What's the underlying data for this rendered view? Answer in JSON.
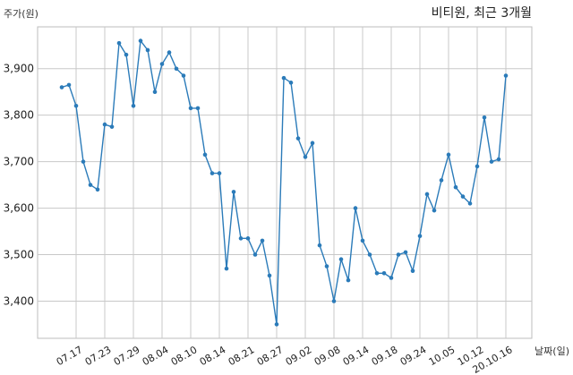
{
  "chart_data": {
    "type": "line",
    "title": "비티원, 최근 3개월",
    "ylabel": "주가(원)",
    "xlabel": "날짜(일)",
    "ylim": [
      3320,
      3990
    ],
    "yticks": [
      3400,
      3500,
      3600,
      3700,
      3800,
      3900
    ],
    "ytick_labels": [
      "3,400",
      "3,500",
      "3,600",
      "3,700",
      "3,800",
      "3,900"
    ],
    "xtick_labels": [
      {
        "label": "07.17",
        "index": 2
      },
      {
        "label": "07.23",
        "index": 6
      },
      {
        "label": "07.29",
        "index": 10
      },
      {
        "label": "08.04",
        "index": 14
      },
      {
        "label": "08.10",
        "index": 18
      },
      {
        "label": "08.14",
        "index": 22
      },
      {
        "label": "08.21",
        "index": 26
      },
      {
        "label": "08.27",
        "index": 30
      },
      {
        "label": "09.02",
        "index": 34
      },
      {
        "label": "09.08",
        "index": 38
      },
      {
        "label": "09.14",
        "index": 42
      },
      {
        "label": "09.18",
        "index": 46
      },
      {
        "label": "09.24",
        "index": 50
      },
      {
        "label": "10.05",
        "index": 54
      },
      {
        "label": "10.12",
        "index": 58
      },
      {
        "label": "20.10.16",
        "index": 62
      }
    ],
    "grid": true,
    "series": [
      {
        "color": "#2b7bb9",
        "values": [
          3860,
          3865,
          3820,
          3700,
          3650,
          3640,
          3780,
          3775,
          3955,
          3930,
          3820,
          3960,
          3940,
          3850,
          3910,
          3935,
          3900,
          3885,
          3815,
          3815,
          3715,
          3675,
          3675,
          3470,
          3635,
          3535,
          3535,
          3500,
          3530,
          3455,
          3350,
          3880,
          3870,
          3750,
          3710,
          3740,
          3520,
          3475,
          3400,
          3490,
          3445,
          3600,
          3530,
          3500,
          3460,
          3460,
          3450,
          3500,
          3505,
          3465,
          3540,
          3630,
          3595,
          3660,
          3715,
          3645,
          3625,
          3610,
          3690,
          3795,
          3700,
          3705,
          3885
        ]
      }
    ]
  }
}
